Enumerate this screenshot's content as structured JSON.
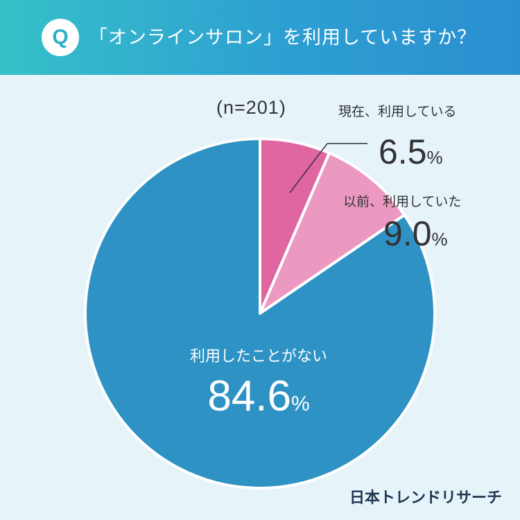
{
  "header": {
    "badge": "Q",
    "question": "「オンラインサロン」を利用していますか？"
  },
  "chart_data": {
    "type": "pie",
    "title": "「オンラインサロン」を利用していますか？",
    "sample_size": "(n=201)",
    "unit": "%",
    "slices": [
      {
        "label": "現在、利用している",
        "value": 6.5,
        "display": "6.5",
        "color": "#df66a0"
      },
      {
        "label": "以前、利用していた",
        "value": 9.0,
        "display": "9.0",
        "color": "#ec99c2"
      },
      {
        "label": "利用したことがない",
        "value": 84.6,
        "display": "84.6",
        "color": "#2e93c4"
      }
    ]
  },
  "brand": "日本トレンドリサーチ"
}
